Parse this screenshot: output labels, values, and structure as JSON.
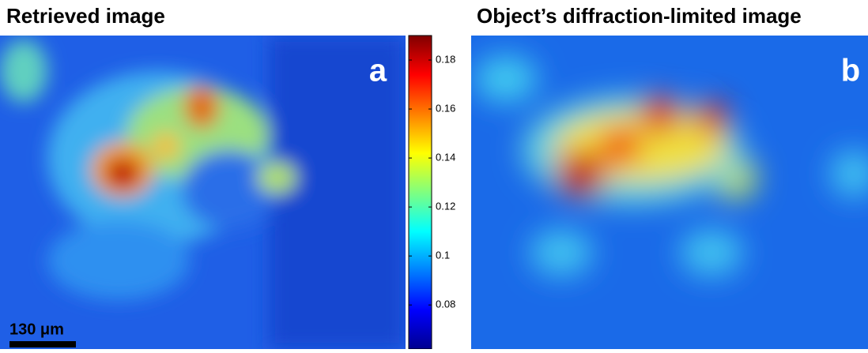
{
  "panels": [
    {
      "title": "Retrieved image",
      "label": "a",
      "scale_bar": "130 μm"
    },
    {
      "title": "Object’s diffraction-limited image",
      "label": "b"
    }
  ],
  "colorbar": {
    "lim": [
      0.062,
      0.19
    ],
    "ticks": [
      0.08,
      0.1,
      0.12,
      0.14,
      0.16,
      0.18
    ]
  }
}
